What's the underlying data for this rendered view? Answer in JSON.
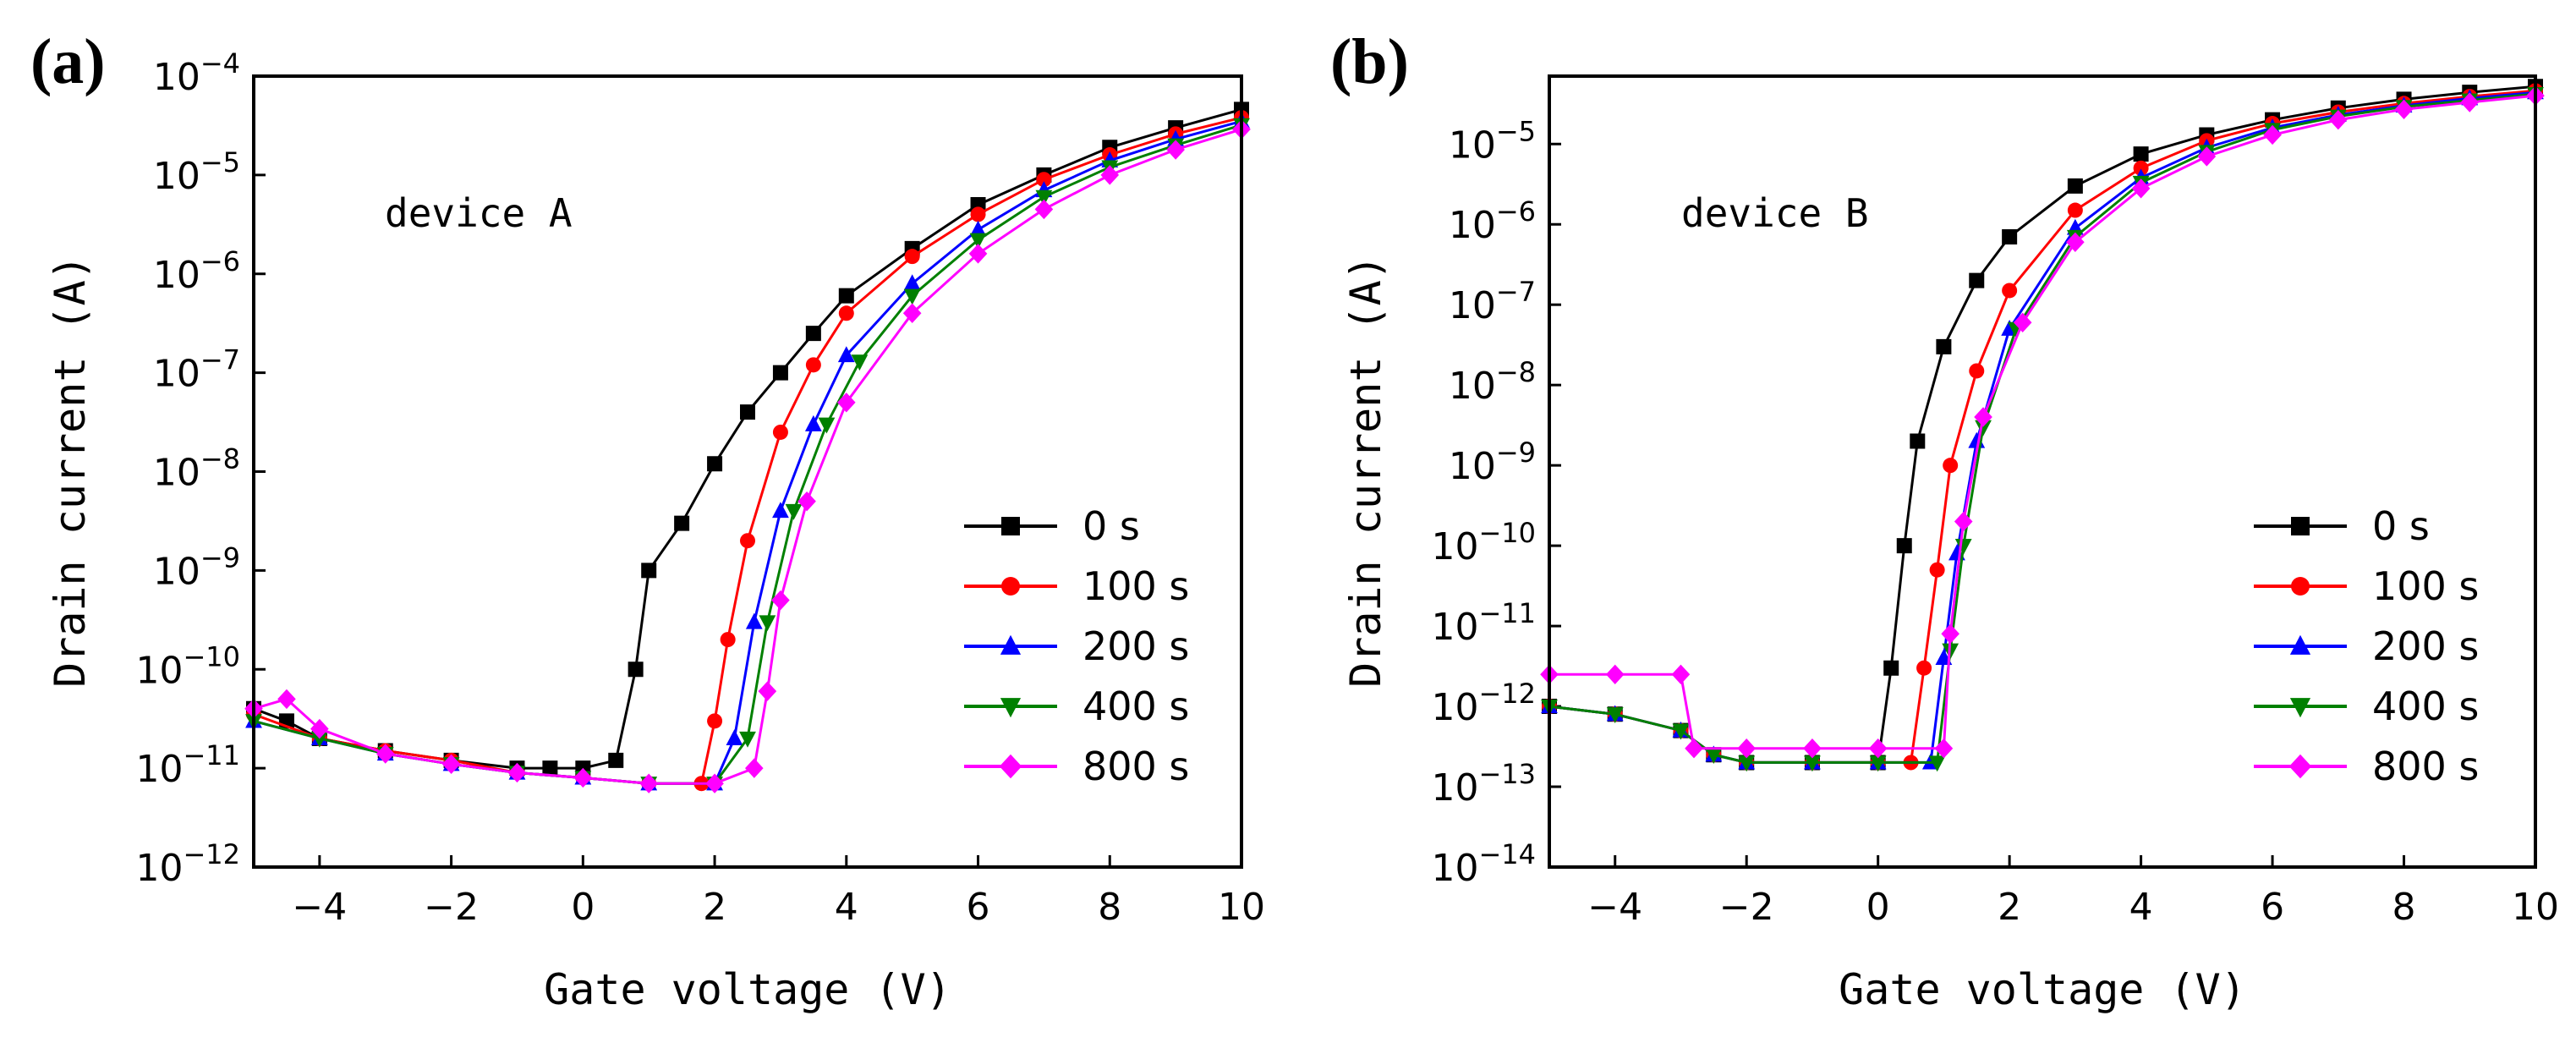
{
  "chart_data": [
    {
      "panel_label": "(a)",
      "type": "line",
      "xlabel": "Gate voltage (V)",
      "ylabel": "Drain current (A)",
      "yscale": "log",
      "xlim": [
        -5,
        10
      ],
      "ylim": [
        1e-12,
        0.0001
      ],
      "xticks": [
        "-4",
        "-2",
        "0",
        "2",
        "4",
        "6",
        "8",
        "10"
      ],
      "yticks": [
        {
          "base": "10",
          "exp": "-12"
        },
        {
          "base": "10",
          "exp": "-11"
        },
        {
          "base": "10",
          "exp": "-10"
        },
        {
          "base": "10",
          "exp": "-9"
        },
        {
          "base": "10",
          "exp": "-8"
        },
        {
          "base": "10",
          "exp": "-7"
        },
        {
          "base": "10",
          "exp": "-6"
        },
        {
          "base": "10",
          "exp": "-5"
        },
        {
          "base": "10",
          "exp": "-4"
        }
      ],
      "annotation": "device A",
      "legend_position": "center-right",
      "series": [
        {
          "name": "0 s",
          "color": "#000000",
          "marker": "square",
          "points": [
            [
              -5,
              4e-11
            ],
            [
              -4.5,
              3e-11
            ],
            [
              -4,
              2e-11
            ],
            [
              -3,
              1.5e-11
            ],
            [
              -2,
              1.2e-11
            ],
            [
              -1,
              1e-11
            ],
            [
              -0.5,
              1e-11
            ],
            [
              0,
              1e-11
            ],
            [
              0.5,
              1.2e-11
            ],
            [
              0.8,
              1e-10
            ],
            [
              1,
              1e-09
            ],
            [
              1.5,
              3e-09
            ],
            [
              2,
              1.2e-08
            ],
            [
              2.5,
              4e-08
            ],
            [
              3,
              1e-07
            ],
            [
              3.5,
              2.5e-07
            ],
            [
              4,
              6e-07
            ],
            [
              5,
              1.8e-06
            ],
            [
              6,
              5e-06
            ],
            [
              7,
              1e-05
            ],
            [
              8,
              1.9e-05
            ],
            [
              9,
              3e-05
            ],
            [
              10,
              4.6e-05
            ]
          ]
        },
        {
          "name": "100 s",
          "color": "#ff0000",
          "marker": "circle",
          "points": [
            [
              -5,
              3.5e-11
            ],
            [
              -4,
              2e-11
            ],
            [
              -3,
              1.5e-11
            ],
            [
              -2,
              1.2e-11
            ],
            [
              -1,
              9e-12
            ],
            [
              0,
              8e-12
            ],
            [
              1,
              7e-12
            ],
            [
              1.8,
              7e-12
            ],
            [
              2,
              3e-11
            ],
            [
              2.2,
              2e-10
            ],
            [
              2.5,
              2e-09
            ],
            [
              3,
              2.5e-08
            ],
            [
              3.5,
              1.2e-07
            ],
            [
              4,
              4e-07
            ],
            [
              5,
              1.5e-06
            ],
            [
              6,
              4e-06
            ],
            [
              7,
              9e-06
            ],
            [
              8,
              1.6e-05
            ],
            [
              9,
              2.6e-05
            ],
            [
              10,
              3.8e-05
            ]
          ]
        },
        {
          "name": "200 s",
          "color": "#0000ff",
          "marker": "triangle-up",
          "points": [
            [
              -5,
              3e-11
            ],
            [
              -4,
              2e-11
            ],
            [
              -3,
              1.4e-11
            ],
            [
              -2,
              1.1e-11
            ],
            [
              -1,
              9e-12
            ],
            [
              0,
              8e-12
            ],
            [
              1,
              7e-12
            ],
            [
              2,
              7e-12
            ],
            [
              2.3,
              2e-11
            ],
            [
              2.6,
              3e-10
            ],
            [
              3,
              4e-09
            ],
            [
              3.5,
              3e-08
            ],
            [
              4,
              1.5e-07
            ],
            [
              5,
              8e-07
            ],
            [
              6,
              2.8e-06
            ],
            [
              7,
              7e-06
            ],
            [
              8,
              1.4e-05
            ],
            [
              9,
              2.3e-05
            ],
            [
              10,
              3.5e-05
            ]
          ]
        },
        {
          "name": "400 s",
          "color": "#008000",
          "marker": "triangle-down",
          "points": [
            [
              -5,
              3e-11
            ],
            [
              -4,
              2e-11
            ],
            [
              -3,
              1.4e-11
            ],
            [
              -2,
              1.1e-11
            ],
            [
              -1,
              9e-12
            ],
            [
              0,
              8e-12
            ],
            [
              1,
              7e-12
            ],
            [
              2,
              7e-12
            ],
            [
              2.5,
              2e-11
            ],
            [
              2.8,
              3e-10
            ],
            [
              3.2,
              4e-09
            ],
            [
              3.7,
              3e-08
            ],
            [
              4.2,
              1.3e-07
            ],
            [
              5,
              6e-07
            ],
            [
              6,
              2.2e-06
            ],
            [
              7,
              6e-06
            ],
            [
              8,
              1.2e-05
            ],
            [
              9,
              2e-05
            ],
            [
              10,
              3.2e-05
            ]
          ]
        },
        {
          "name": "800 s",
          "color": "#ff00ff",
          "marker": "diamond",
          "points": [
            [
              -5,
              4e-11
            ],
            [
              -4.5,
              5e-11
            ],
            [
              -4,
              2.5e-11
            ],
            [
              -3,
              1.4e-11
            ],
            [
              -2,
              1.1e-11
            ],
            [
              -1,
              9e-12
            ],
            [
              0,
              8e-12
            ],
            [
              1,
              7e-12
            ],
            [
              2,
              7e-12
            ],
            [
              2.6,
              1e-11
            ],
            [
              2.8,
              6e-11
            ],
            [
              3,
              5e-10
            ],
            [
              3.4,
              5e-09
            ],
            [
              4,
              5e-08
            ],
            [
              5,
              4e-07
            ],
            [
              6,
              1.6e-06
            ],
            [
              7,
              4.5e-06
            ],
            [
              8,
              1e-05
            ],
            [
              9,
              1.8e-05
            ],
            [
              10,
              2.9e-05
            ]
          ]
        }
      ]
    },
    {
      "panel_label": "(b)",
      "type": "line",
      "xlabel": "Gate voltage (V)",
      "ylabel": "Drain current (A)",
      "yscale": "log",
      "xlim": [
        -5,
        10
      ],
      "ylim": [
        1e-14,
        7e-05
      ],
      "xticks": [
        "-4",
        "-2",
        "0",
        "2",
        "4",
        "6",
        "8",
        "10"
      ],
      "yticks": [
        {
          "base": "10",
          "exp": "-14"
        },
        {
          "base": "10",
          "exp": "-13"
        },
        {
          "base": "10",
          "exp": "-12"
        },
        {
          "base": "10",
          "exp": "-11"
        },
        {
          "base": "10",
          "exp": "-10"
        },
        {
          "base": "10",
          "exp": "-9"
        },
        {
          "base": "10",
          "exp": "-8"
        },
        {
          "base": "10",
          "exp": "-7"
        },
        {
          "base": "10",
          "exp": "-6"
        },
        {
          "base": "10",
          "exp": "-5"
        }
      ],
      "annotation": "device B",
      "legend_position": "center-right",
      "series": [
        {
          "name": "0 s",
          "color": "#000000",
          "marker": "square",
          "points": [
            [
              -5,
              1e-12
            ],
            [
              -4,
              8e-13
            ],
            [
              -3,
              5e-13
            ],
            [
              -2.5,
              2.5e-13
            ],
            [
              -2,
              2e-13
            ],
            [
              -1,
              2e-13
            ],
            [
              0,
              2e-13
            ],
            [
              0.2,
              3e-12
            ],
            [
              0.4,
              1e-10
            ],
            [
              0.6,
              2e-09
            ],
            [
              1,
              3e-08
            ],
            [
              1.5,
              2e-07
            ],
            [
              2,
              7e-07
            ],
            [
              3,
              3e-06
            ],
            [
              4,
              7.5e-06
            ],
            [
              5,
              1.3e-05
            ],
            [
              6,
              2e-05
            ],
            [
              7,
              2.8e-05
            ],
            [
              8,
              3.6e-05
            ],
            [
              9,
              4.4e-05
            ],
            [
              10,
              5.2e-05
            ]
          ]
        },
        {
          "name": "100 s",
          "color": "#ff0000",
          "marker": "circle",
          "points": [
            [
              -5,
              1e-12
            ],
            [
              -4,
              8e-13
            ],
            [
              -3,
              5e-13
            ],
            [
              -2.5,
              2.5e-13
            ],
            [
              -2,
              2e-13
            ],
            [
              -1,
              2e-13
            ],
            [
              0,
              2e-13
            ],
            [
              0.5,
              2e-13
            ],
            [
              0.7,
              3e-12
            ],
            [
              0.9,
              5e-11
            ],
            [
              1.1,
              1e-09
            ],
            [
              1.5,
              1.5e-08
            ],
            [
              2,
              1.5e-07
            ],
            [
              3,
              1.5e-06
            ],
            [
              4,
              5e-06
            ],
            [
              5,
              1.1e-05
            ],
            [
              6,
              1.8e-05
            ],
            [
              7,
              2.5e-05
            ],
            [
              8,
              3.2e-05
            ],
            [
              9,
              3.9e-05
            ],
            [
              10,
              4.6e-05
            ]
          ]
        },
        {
          "name": "200 s",
          "color": "#0000ff",
          "marker": "triangle-up",
          "points": [
            [
              -5,
              1e-12
            ],
            [
              -4,
              8e-13
            ],
            [
              -3,
              5e-13
            ],
            [
              -2.5,
              2.5e-13
            ],
            [
              -2,
              2e-13
            ],
            [
              -1,
              2e-13
            ],
            [
              0,
              2e-13
            ],
            [
              0.8,
              2e-13
            ],
            [
              1,
              4e-12
            ],
            [
              1.2,
              8e-11
            ],
            [
              1.5,
              2e-09
            ],
            [
              2,
              5e-08
            ],
            [
              3,
              9e-07
            ],
            [
              4,
              3.8e-06
            ],
            [
              5,
              9e-06
            ],
            [
              6,
              1.6e-05
            ],
            [
              7,
              2.3e-05
            ],
            [
              8,
              3e-05
            ],
            [
              9,
              3.7e-05
            ],
            [
              10,
              4.4e-05
            ]
          ]
        },
        {
          "name": "400 s",
          "color": "#008000",
          "marker": "triangle-down",
          "points": [
            [
              -5,
              1e-12
            ],
            [
              -4,
              8e-13
            ],
            [
              -3,
              5e-13
            ],
            [
              -2.5,
              2.5e-13
            ],
            [
              -2,
              2e-13
            ],
            [
              -1,
              2e-13
            ],
            [
              0,
              2e-13
            ],
            [
              0.9,
              2e-13
            ],
            [
              1.1,
              5e-12
            ],
            [
              1.3,
              1e-10
            ],
            [
              1.6,
              3e-09
            ],
            [
              2.1,
              5e-08
            ],
            [
              3,
              7e-07
            ],
            [
              4,
              3.3e-06
            ],
            [
              5,
              8e-06
            ],
            [
              6,
              1.5e-05
            ],
            [
              7,
              2.2e-05
            ],
            [
              8,
              2.9e-05
            ],
            [
              9,
              3.5e-05
            ],
            [
              10,
              4.2e-05
            ]
          ]
        },
        {
          "name": "800 s",
          "color": "#ff00ff",
          "marker": "diamond",
          "points": [
            [
              -5,
              2.5e-12
            ],
            [
              -4,
              2.5e-12
            ],
            [
              -3,
              2.5e-12
            ],
            [
              -2.8,
              3e-13
            ],
            [
              -2,
              3e-13
            ],
            [
              -1,
              3e-13
            ],
            [
              0,
              3e-13
            ],
            [
              1,
              3e-13
            ],
            [
              1.1,
              8e-12
            ],
            [
              1.3,
              2e-10
            ],
            [
              1.6,
              4e-09
            ],
            [
              2.2,
              6e-08
            ],
            [
              3,
              6e-07
            ],
            [
              4,
              2.8e-06
            ],
            [
              5,
              7e-06
            ],
            [
              6,
              1.3e-05
            ],
            [
              7,
              2e-05
            ],
            [
              8,
              2.7e-05
            ],
            [
              9,
              3.3e-05
            ],
            [
              10,
              4e-05
            ]
          ]
        }
      ]
    }
  ]
}
